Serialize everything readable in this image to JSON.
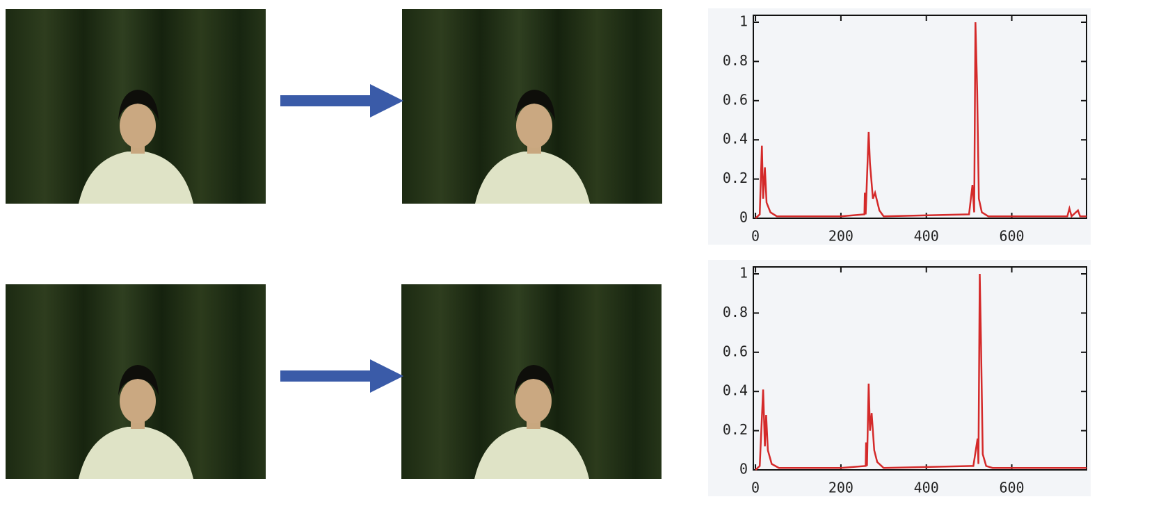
{
  "chart_data": [
    {
      "type": "line",
      "color": "#d42a2a",
      "x": [
        0,
        10,
        15,
        18,
        22,
        26,
        35,
        50,
        200,
        255,
        256,
        258,
        265,
        268,
        275,
        280,
        290,
        300,
        500,
        508,
        512,
        515,
        519,
        523,
        530,
        545,
        730,
        735,
        740,
        755,
        760,
        775
      ],
      "values": [
        0,
        0.02,
        0.37,
        0.1,
        0.26,
        0.08,
        0.03,
        0.01,
        0.01,
        0.02,
        0.13,
        0.02,
        0.44,
        0.28,
        0.1,
        0.13,
        0.04,
        0.01,
        0.02,
        0.17,
        0.03,
        1.0,
        0.65,
        0.1,
        0.03,
        0.01,
        0.01,
        0.05,
        0.01,
        0.04,
        0.01,
        0.01
      ],
      "xlim": [
        -5,
        775
      ],
      "ylim": [
        0,
        1
      ],
      "xticks": [
        0,
        200,
        400,
        600
      ],
      "yticks": [
        0,
        0.2,
        0.4,
        0.6,
        0.8,
        1
      ]
    },
    {
      "type": "line",
      "color": "#d42a2a",
      "x": [
        0,
        10,
        18,
        22,
        25,
        29,
        38,
        55,
        200,
        258,
        259,
        261,
        265,
        268,
        272,
        278,
        285,
        300,
        510,
        520,
        522,
        525,
        528,
        532,
        540,
        555,
        740,
        775
      ],
      "values": [
        0,
        0.02,
        0.41,
        0.12,
        0.28,
        0.1,
        0.03,
        0.01,
        0.01,
        0.02,
        0.14,
        0.02,
        0.44,
        0.2,
        0.29,
        0.1,
        0.04,
        0.01,
        0.02,
        0.16,
        0.03,
        1.0,
        0.65,
        0.08,
        0.02,
        0.01,
        0.01,
        0.01
      ],
      "xlim": [
        -5,
        775
      ],
      "ylim": [
        0,
        1
      ],
      "xticks": [
        0,
        200,
        400,
        600
      ],
      "yticks": [
        0,
        0.2,
        0.4,
        0.6,
        0.8,
        1
      ]
    }
  ]
}
